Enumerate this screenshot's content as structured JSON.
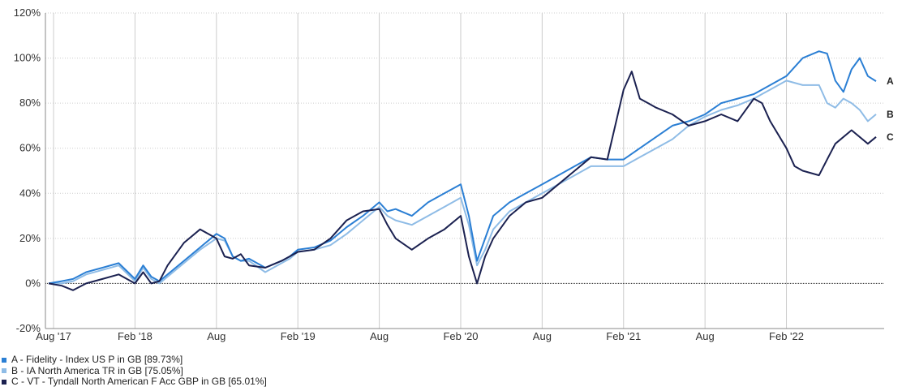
{
  "chart_data": {
    "type": "line",
    "title": "",
    "xlabel": "",
    "ylabel": "",
    "ylim": [
      -20,
      120
    ],
    "yticks": [
      "120%",
      "100%",
      "80%",
      "60%",
      "40%",
      "20%",
      "0%",
      "-20%"
    ],
    "ytick_values": [
      120,
      100,
      80,
      60,
      40,
      20,
      0,
      -20
    ],
    "xticks": [
      "Aug '17",
      "Feb '18",
      "Aug",
      "Feb '19",
      "Aug",
      "Feb '20",
      "Aug",
      "Feb '21",
      "Aug",
      "Feb '22"
    ],
    "xtick_values": [
      2017.5,
      2018.0,
      2018.5,
      2019.0,
      2019.5,
      2020.0,
      2020.5,
      2021.0,
      2021.5,
      2022.0
    ],
    "xlim": [
      2017.45,
      2022.6
    ],
    "grid": true,
    "legend_position": "bottom-left",
    "series": [
      {
        "name": "A - Fidelity - Index US P in GB [89.73%]",
        "end_label": "A",
        "color": "#2b7fd4",
        "x": [
          2017.47,
          2017.55,
          2017.62,
          2017.7,
          2017.8,
          2017.9,
          2018.0,
          2018.05,
          2018.1,
          2018.15,
          2018.2,
          2018.3,
          2018.4,
          2018.5,
          2018.55,
          2018.6,
          2018.65,
          2018.7,
          2018.8,
          2018.9,
          2018.95,
          2019.0,
          2019.1,
          2019.2,
          2019.3,
          2019.4,
          2019.5,
          2019.55,
          2019.6,
          2019.7,
          2019.8,
          2019.9,
          2020.0,
          2020.05,
          2020.1,
          2020.15,
          2020.2,
          2020.3,
          2020.4,
          2020.5,
          2020.6,
          2020.7,
          2020.8,
          2020.9,
          2021.0,
          2021.1,
          2021.2,
          2021.3,
          2021.4,
          2021.5,
          2021.6,
          2021.7,
          2021.8,
          2021.85,
          2021.9,
          2022.0,
          2022.1,
          2022.2,
          2022.25,
          2022.3,
          2022.35,
          2022.4,
          2022.45,
          2022.5,
          2022.55
        ],
        "values": [
          0,
          1,
          2,
          5,
          7,
          9,
          2,
          8,
          3,
          1,
          4,
          10,
          16,
          22,
          20,
          12,
          10,
          11,
          7,
          10,
          12,
          15,
          16,
          19,
          25,
          30,
          36,
          32,
          33,
          30,
          36,
          40,
          44,
          30,
          10,
          20,
          30,
          36,
          40,
          44,
          48,
          52,
          56,
          55,
          55,
          60,
          65,
          70,
          72,
          75,
          80,
          82,
          84,
          86,
          88,
          92,
          100,
          103,
          102,
          90,
          85,
          95,
          100,
          92,
          89.73
        ]
      },
      {
        "name": "B - IA North America TR in GB [75.05%]",
        "end_label": "B",
        "color": "#8fbce6",
        "x": [
          2017.47,
          2017.55,
          2017.62,
          2017.7,
          2017.8,
          2017.9,
          2018.0,
          2018.05,
          2018.1,
          2018.15,
          2018.2,
          2018.3,
          2018.4,
          2018.5,
          2018.55,
          2018.6,
          2018.65,
          2018.7,
          2018.8,
          2018.9,
          2018.95,
          2019.0,
          2019.1,
          2019.2,
          2019.3,
          2019.4,
          2019.5,
          2019.55,
          2019.6,
          2019.7,
          2019.8,
          2019.9,
          2020.0,
          2020.05,
          2020.1,
          2020.15,
          2020.2,
          2020.3,
          2020.4,
          2020.5,
          2020.6,
          2020.7,
          2020.8,
          2020.9,
          2021.0,
          2021.1,
          2021.2,
          2021.3,
          2021.4,
          2021.5,
          2021.6,
          2021.7,
          2021.8,
          2021.85,
          2021.9,
          2022.0,
          2022.1,
          2022.2,
          2022.25,
          2022.3,
          2022.35,
          2022.4,
          2022.45,
          2022.5,
          2022.55
        ],
        "values": [
          0,
          0,
          1,
          4,
          6,
          8,
          1,
          7,
          2,
          0,
          3,
          9,
          15,
          20,
          19,
          12,
          10,
          10,
          5,
          9,
          11,
          14,
          15,
          17,
          22,
          28,
          34,
          30,
          28,
          26,
          30,
          34,
          38,
          26,
          8,
          15,
          24,
          32,
          36,
          40,
          44,
          48,
          52,
          52,
          52,
          56,
          60,
          64,
          70,
          74,
          77,
          79,
          82,
          84,
          86,
          90,
          88,
          88,
          80,
          78,
          82,
          80,
          77,
          72,
          75.05
        ]
      },
      {
        "name": "C - VT - Tyndall North American F Acc GBP in GB [65.01%]",
        "end_label": "C",
        "color": "#1b2150",
        "x": [
          2017.47,
          2017.55,
          2017.62,
          2017.7,
          2017.8,
          2017.9,
          2018.0,
          2018.05,
          2018.1,
          2018.15,
          2018.2,
          2018.3,
          2018.4,
          2018.5,
          2018.55,
          2018.6,
          2018.65,
          2018.7,
          2018.8,
          2018.9,
          2018.95,
          2019.0,
          2019.1,
          2019.2,
          2019.3,
          2019.4,
          2019.5,
          2019.55,
          2019.6,
          2019.7,
          2019.8,
          2019.9,
          2020.0,
          2020.05,
          2020.1,
          2020.15,
          2020.2,
          2020.3,
          2020.4,
          2020.5,
          2020.6,
          2020.7,
          2020.8,
          2020.9,
          2021.0,
          2021.05,
          2021.1,
          2021.15,
          2021.2,
          2021.3,
          2021.4,
          2021.5,
          2021.6,
          2021.7,
          2021.8,
          2021.85,
          2021.9,
          2022.0,
          2022.05,
          2022.1,
          2022.2,
          2022.25,
          2022.3,
          2022.4,
          2022.5,
          2022.55
        ],
        "values": [
          0,
          -1,
          -3,
          0,
          2,
          4,
          0,
          5,
          0,
          1,
          8,
          18,
          24,
          20,
          12,
          11,
          13,
          8,
          7,
          10,
          12,
          14,
          15,
          20,
          28,
          32,
          33,
          26,
          20,
          15,
          20,
          24,
          30,
          12,
          0,
          12,
          20,
          30,
          36,
          38,
          44,
          50,
          56,
          55,
          86,
          94,
          82,
          80,
          78,
          75,
          70,
          72,
          75,
          72,
          82,
          80,
          72,
          60,
          52,
          50,
          48,
          55,
          62,
          68,
          62,
          65.01
        ]
      }
    ]
  }
}
